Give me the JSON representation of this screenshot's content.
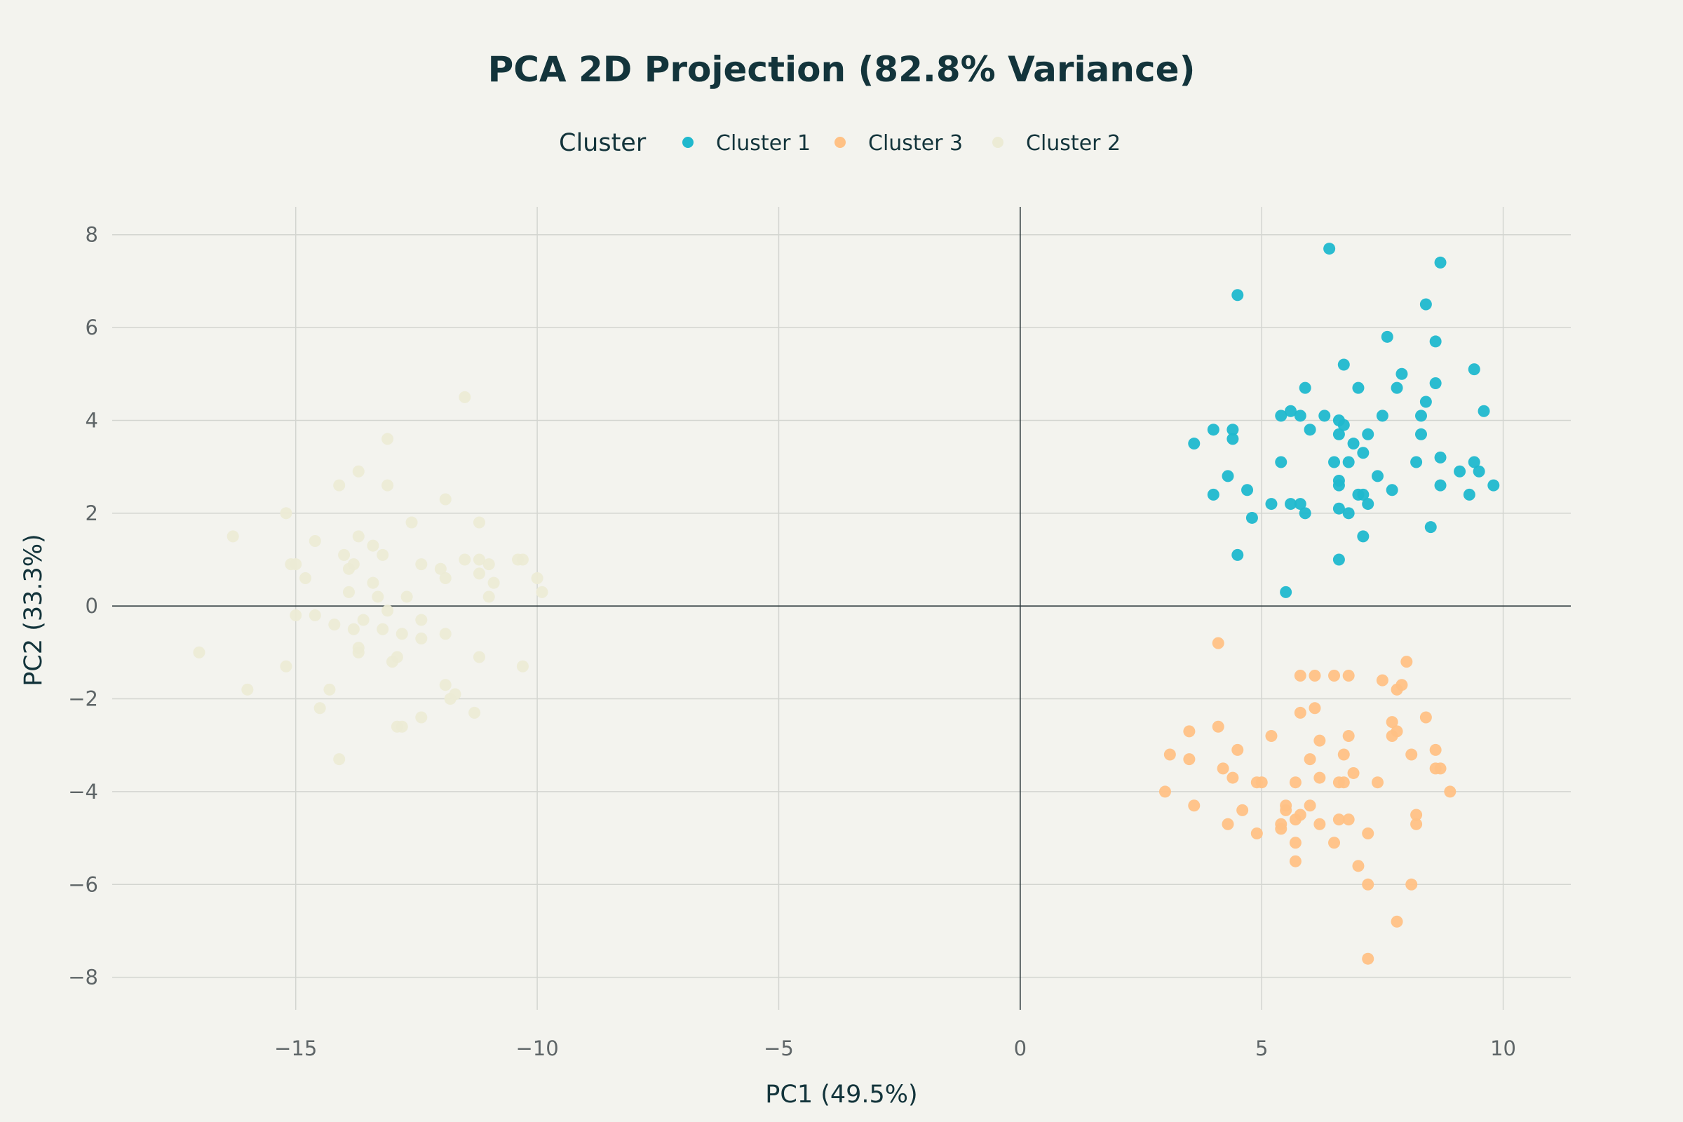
{
  "chart_data": {
    "type": "scatter",
    "title": "PCA 2D Projection (82.8% Variance)",
    "xlabel": "PC1 (49.5%)",
    "ylabel": "PC2 (33.3%)",
    "xlim": [
      -18.8,
      11.4
    ],
    "ylim": [
      -8.7,
      8.6
    ],
    "x_ticks": [
      -15,
      -10,
      -5,
      0,
      5,
      10
    ],
    "x_tick_labels": [
      "−15",
      "−10",
      "−5",
      "0",
      "5",
      "10"
    ],
    "y_ticks": [
      -8,
      -6,
      -4,
      -2,
      0,
      2,
      4,
      6,
      8
    ],
    "y_tick_labels": [
      "−8",
      "−6",
      "−4",
      "−2",
      "0",
      "2",
      "4",
      "6",
      "8"
    ],
    "grid": true,
    "legend": {
      "title": "Cluster",
      "placement": "top-center",
      "entries": [
        "Cluster 1",
        "Cluster 3",
        "Cluster 2"
      ]
    },
    "series": [
      {
        "name": "Cluster 1",
        "color": "#1fb8cd",
        "points": [
          [
            6.4,
            7.7
          ],
          [
            8.7,
            7.4
          ],
          [
            4.5,
            6.7
          ],
          [
            8.4,
            6.5
          ],
          [
            7.6,
            5.8
          ],
          [
            8.6,
            5.7
          ],
          [
            6.7,
            5.2
          ],
          [
            9.4,
            5.1
          ],
          [
            7.9,
            5.0
          ],
          [
            5.9,
            4.7
          ],
          [
            7.0,
            4.7
          ],
          [
            7.8,
            4.7
          ],
          [
            8.6,
            4.8
          ],
          [
            8.4,
            4.4
          ],
          [
            9.6,
            4.2
          ],
          [
            5.6,
            4.2
          ],
          [
            5.4,
            4.1
          ],
          [
            5.8,
            4.1
          ],
          [
            6.3,
            4.1
          ],
          [
            7.5,
            4.1
          ],
          [
            8.3,
            4.1
          ],
          [
            6.6,
            4.0
          ],
          [
            6.7,
            3.9
          ],
          [
            4.0,
            3.8
          ],
          [
            4.4,
            3.8
          ],
          [
            6.0,
            3.8
          ],
          [
            6.6,
            3.7
          ],
          [
            7.2,
            3.7
          ],
          [
            8.3,
            3.7
          ],
          [
            4.4,
            3.6
          ],
          [
            3.6,
            3.5
          ],
          [
            6.9,
            3.5
          ],
          [
            7.1,
            3.3
          ],
          [
            5.4,
            3.1
          ],
          [
            6.5,
            3.1
          ],
          [
            6.8,
            3.1
          ],
          [
            8.2,
            3.1
          ],
          [
            8.7,
            3.2
          ],
          [
            9.4,
            3.1
          ],
          [
            9.1,
            2.9
          ],
          [
            9.5,
            2.9
          ],
          [
            4.3,
            2.8
          ],
          [
            7.4,
            2.8
          ],
          [
            6.6,
            2.7
          ],
          [
            6.6,
            2.6
          ],
          [
            8.7,
            2.6
          ],
          [
            9.8,
            2.6
          ],
          [
            4.7,
            2.5
          ],
          [
            7.0,
            2.4
          ],
          [
            7.1,
            2.4
          ],
          [
            7.7,
            2.5
          ],
          [
            9.3,
            2.4
          ],
          [
            4.0,
            2.4
          ],
          [
            5.2,
            2.2
          ],
          [
            5.6,
            2.2
          ],
          [
            5.8,
            2.2
          ],
          [
            7.2,
            2.2
          ],
          [
            6.6,
            2.1
          ],
          [
            6.8,
            2.0
          ],
          [
            5.9,
            2.0
          ],
          [
            4.8,
            1.9
          ],
          [
            8.5,
            1.7
          ],
          [
            7.1,
            1.5
          ],
          [
            4.5,
            1.1
          ],
          [
            6.6,
            1.0
          ],
          [
            5.5,
            0.3
          ]
        ]
      },
      {
        "name": "Cluster 3",
        "color": "#ffc185",
        "points": [
          [
            4.1,
            -0.8
          ],
          [
            8.0,
            -1.2
          ],
          [
            5.8,
            -1.5
          ],
          [
            6.1,
            -1.5
          ],
          [
            6.5,
            -1.5
          ],
          [
            6.8,
            -1.5
          ],
          [
            7.5,
            -1.6
          ],
          [
            7.8,
            -1.8
          ],
          [
            7.9,
            -1.7
          ],
          [
            6.1,
            -2.2
          ],
          [
            5.8,
            -2.3
          ],
          [
            7.7,
            -2.5
          ],
          [
            8.4,
            -2.4
          ],
          [
            4.1,
            -2.6
          ],
          [
            7.8,
            -2.7
          ],
          [
            3.5,
            -2.7
          ],
          [
            5.2,
            -2.8
          ],
          [
            6.8,
            -2.8
          ],
          [
            7.7,
            -2.8
          ],
          [
            6.2,
            -2.9
          ],
          [
            4.5,
            -3.1
          ],
          [
            8.6,
            -3.1
          ],
          [
            3.1,
            -3.2
          ],
          [
            3.5,
            -3.3
          ],
          [
            6.0,
            -3.3
          ],
          [
            6.7,
            -3.2
          ],
          [
            8.1,
            -3.2
          ],
          [
            4.2,
            -3.5
          ],
          [
            6.9,
            -3.6
          ],
          [
            8.7,
            -3.5
          ],
          [
            8.6,
            -3.5
          ],
          [
            4.4,
            -3.7
          ],
          [
            6.2,
            -3.7
          ],
          [
            5.7,
            -3.8
          ],
          [
            4.9,
            -3.8
          ],
          [
            5.0,
            -3.8
          ],
          [
            6.7,
            -3.8
          ],
          [
            6.6,
            -3.8
          ],
          [
            7.4,
            -3.8
          ],
          [
            8.9,
            -4.0
          ],
          [
            3.0,
            -4.0
          ],
          [
            3.6,
            -4.3
          ],
          [
            4.6,
            -4.4
          ],
          [
            5.5,
            -4.3
          ],
          [
            5.5,
            -4.4
          ],
          [
            6.0,
            -4.3
          ],
          [
            5.7,
            -4.6
          ],
          [
            5.8,
            -4.5
          ],
          [
            6.6,
            -4.6
          ],
          [
            6.8,
            -4.6
          ],
          [
            5.4,
            -4.7
          ],
          [
            6.2,
            -4.7
          ],
          [
            8.2,
            -4.5
          ],
          [
            8.2,
            -4.7
          ],
          [
            4.3,
            -4.7
          ],
          [
            4.9,
            -4.9
          ],
          [
            5.4,
            -4.8
          ],
          [
            7.2,
            -4.9
          ],
          [
            5.7,
            -5.1
          ],
          [
            6.5,
            -5.1
          ],
          [
            5.7,
            -5.5
          ],
          [
            7.0,
            -5.6
          ],
          [
            8.1,
            -6.0
          ],
          [
            7.2,
            -6.0
          ],
          [
            7.8,
            -6.8
          ],
          [
            7.2,
            -7.6
          ]
        ]
      },
      {
        "name": "Cluster 2",
        "color": "#ecebd5",
        "points": [
          [
            -11.5,
            4.5
          ],
          [
            -13.1,
            3.6
          ],
          [
            -13.7,
            2.9
          ],
          [
            -14.1,
            2.6
          ],
          [
            -13.1,
            2.6
          ],
          [
            -11.9,
            2.3
          ],
          [
            -15.2,
            2.0
          ],
          [
            -12.6,
            1.8
          ],
          [
            -11.2,
            1.8
          ],
          [
            -13.7,
            1.5
          ],
          [
            -16.3,
            1.5
          ],
          [
            -14.6,
            1.4
          ],
          [
            -13.4,
            1.3
          ],
          [
            -14.0,
            1.1
          ],
          [
            -13.2,
            1.1
          ],
          [
            -12.4,
            0.9
          ],
          [
            -11.5,
            1.0
          ],
          [
            -11.2,
            1.0
          ],
          [
            -10.4,
            1.0
          ],
          [
            -10.3,
            1.0
          ],
          [
            -15.1,
            0.9
          ],
          [
            -13.8,
            0.9
          ],
          [
            -12.0,
            0.8
          ],
          [
            -11.0,
            0.9
          ],
          [
            -13.9,
            0.8
          ],
          [
            -15.0,
            0.9
          ],
          [
            -14.8,
            0.6
          ],
          [
            -11.2,
            0.7
          ],
          [
            -11.9,
            0.6
          ],
          [
            -10.9,
            0.5
          ],
          [
            -10.0,
            0.6
          ],
          [
            -13.4,
            0.5
          ],
          [
            -13.9,
            0.3
          ],
          [
            -13.3,
            0.2
          ],
          [
            -12.7,
            0.2
          ],
          [
            -11.0,
            0.2
          ],
          [
            -9.9,
            0.3
          ],
          [
            -13.1,
            -0.1
          ],
          [
            -14.6,
            -0.2
          ],
          [
            -15.0,
            -0.2
          ],
          [
            -13.6,
            -0.3
          ],
          [
            -12.4,
            -0.3
          ],
          [
            -14.2,
            -0.4
          ],
          [
            -13.8,
            -0.5
          ],
          [
            -13.2,
            -0.5
          ],
          [
            -12.8,
            -0.6
          ],
          [
            -11.9,
            -0.6
          ],
          [
            -12.4,
            -0.7
          ],
          [
            -13.7,
            -0.9
          ],
          [
            -13.7,
            -1.0
          ],
          [
            -17.0,
            -1.0
          ],
          [
            -12.9,
            -1.1
          ],
          [
            -13.0,
            -1.2
          ],
          [
            -11.2,
            -1.1
          ],
          [
            -10.3,
            -1.3
          ],
          [
            -15.2,
            -1.3
          ],
          [
            -11.9,
            -1.7
          ],
          [
            -16.0,
            -1.8
          ],
          [
            -14.3,
            -1.8
          ],
          [
            -11.7,
            -1.9
          ],
          [
            -11.8,
            -2.0
          ],
          [
            -14.5,
            -2.2
          ],
          [
            -11.3,
            -2.3
          ],
          [
            -12.4,
            -2.4
          ],
          [
            -12.9,
            -2.6
          ],
          [
            -12.8,
            -2.6
          ],
          [
            -14.1,
            -3.3
          ]
        ]
      }
    ]
  }
}
